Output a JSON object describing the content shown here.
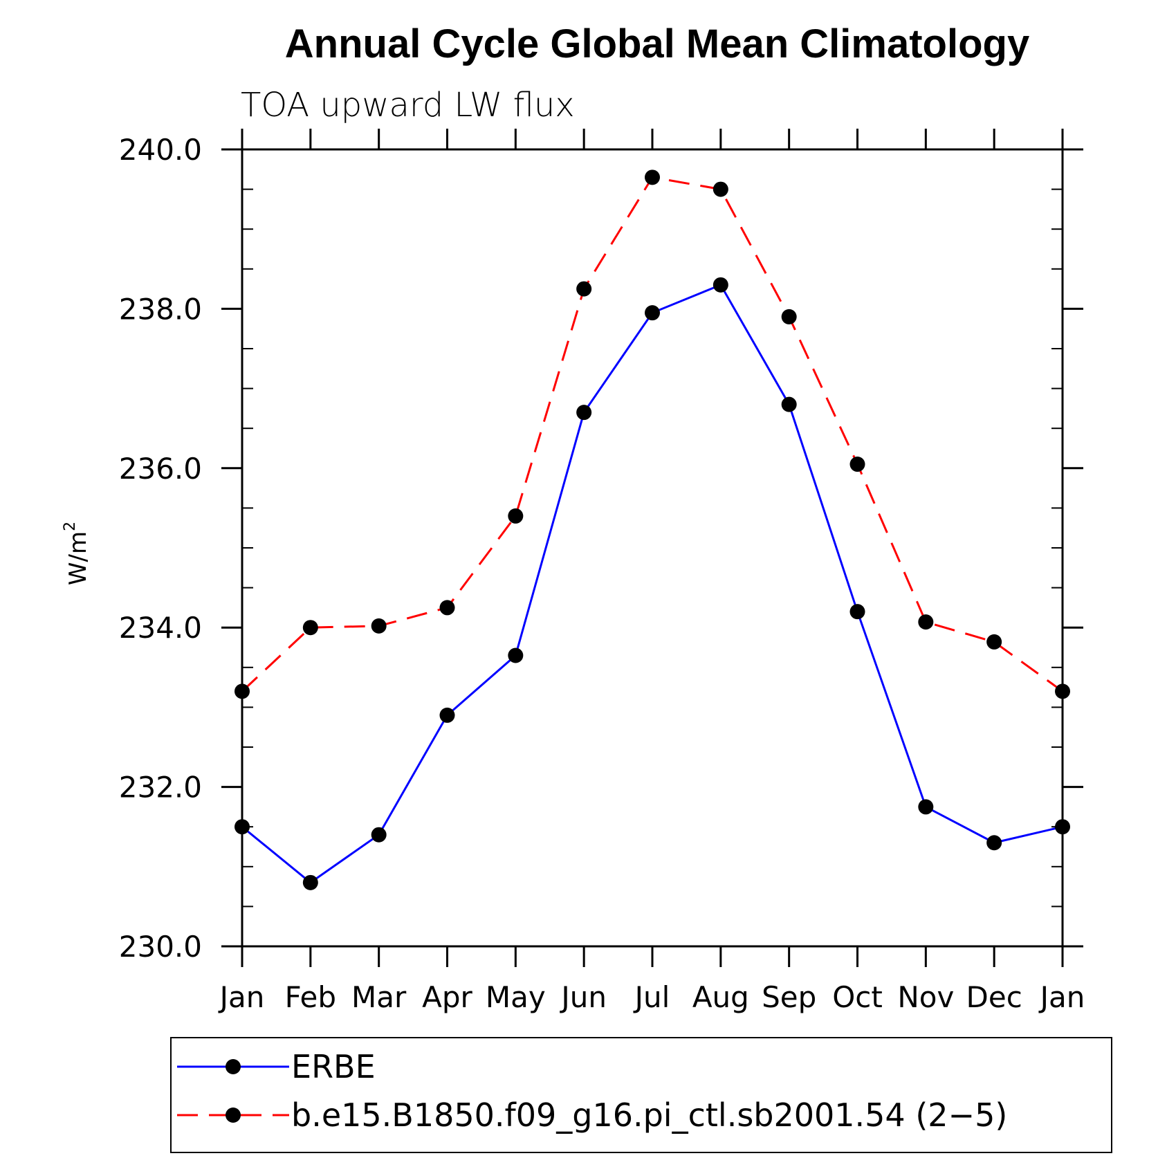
{
  "chart_data": {
    "type": "line",
    "title": "Annual Cycle Global Mean Climatology",
    "subtitle": "TOA upward LW flux",
    "xlabel": "",
    "ylabel": "W/m",
    "ylabel_superscript": "2",
    "categories": [
      "Jan",
      "Feb",
      "Mar",
      "Apr",
      "May",
      "Jun",
      "Jul",
      "Aug",
      "Sep",
      "Oct",
      "Nov",
      "Dec",
      "Jan"
    ],
    "ylim": [
      230.0,
      240.0
    ],
    "yticks": [
      230.0,
      232.0,
      234.0,
      236.0,
      238.0,
      240.0
    ],
    "ytick_labels": [
      "230.0",
      "232.0",
      "234.0",
      "236.0",
      "238.0",
      "240.0"
    ],
    "grid": false,
    "legend_position": "bottom",
    "series": [
      {
        "name": "ERBE",
        "color": "#0000ff",
        "dash": "solid",
        "values": [
          231.5,
          230.8,
          231.4,
          232.9,
          233.65,
          236.7,
          237.95,
          238.3,
          236.8,
          234.2,
          231.75,
          231.3,
          231.5
        ]
      },
      {
        "name": "b.e15.B1850.f09_g16.pi_ctl.sb2001.54 (2−5)",
        "color": "#ff0000",
        "dash": "dashed",
        "values": [
          233.2,
          234.0,
          234.02,
          234.25,
          235.4,
          238.25,
          239.65,
          239.5,
          237.9,
          236.05,
          234.07,
          233.82,
          233.2
        ]
      }
    ]
  }
}
